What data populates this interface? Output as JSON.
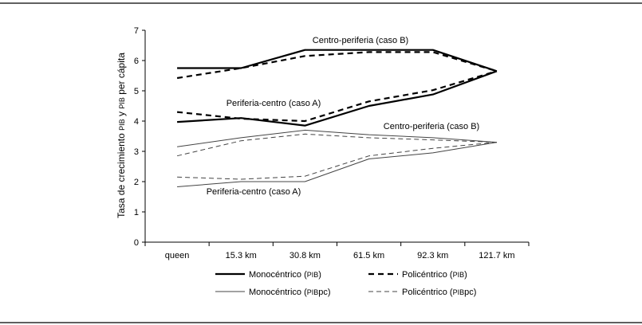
{
  "chart_data": {
    "type": "line",
    "ylabel": {
      "main": "Tasa de crecimiento",
      "pib": "PIB",
      "middle": "y",
      "pib2": "PIB",
      "end": "per cápita"
    },
    "categories": [
      "queen",
      "15.3 km",
      "30.8 km",
      "61.5 km",
      "92.3 km",
      "121.7 km"
    ],
    "ylim": [
      0,
      7
    ],
    "yticks": [
      "0",
      "1",
      "2",
      "3",
      "4",
      "5",
      "6",
      "7"
    ],
    "grid": false,
    "legend_position": "bottom",
    "series": [
      {
        "legend_key": "mono_pib",
        "case": "B",
        "style": "solid",
        "weight": "thick",
        "values": [
          5.75,
          5.75,
          6.35,
          6.35,
          6.35,
          5.65
        ]
      },
      {
        "legend_key": "poly_pib",
        "case": "B",
        "style": "dashed",
        "weight": "thick",
        "values": [
          5.42,
          5.75,
          6.15,
          6.28,
          6.28,
          5.65
        ]
      },
      {
        "legend_key": "mono_pib",
        "case": "A",
        "style": "solid",
        "weight": "thick",
        "values": [
          3.97,
          4.1,
          3.85,
          4.5,
          4.88,
          5.65
        ]
      },
      {
        "legend_key": "poly_pib",
        "case": "A",
        "style": "dashed",
        "weight": "thick",
        "values": [
          4.3,
          4.08,
          4.0,
          4.65,
          5.02,
          5.65
        ]
      },
      {
        "legend_key": "mono_pibpc",
        "case": "B",
        "style": "solid",
        "weight": "thin",
        "values": [
          3.15,
          3.45,
          3.7,
          3.55,
          3.45,
          3.3
        ]
      },
      {
        "legend_key": "poly_pibpc",
        "case": "B",
        "style": "dashed",
        "weight": "thin",
        "values": [
          2.85,
          3.35,
          3.57,
          3.45,
          3.38,
          3.3
        ]
      },
      {
        "legend_key": "mono_pibpc",
        "case": "A",
        "style": "solid",
        "weight": "thin",
        "values": [
          1.83,
          2.0,
          2.0,
          2.75,
          2.95,
          3.3
        ]
      },
      {
        "legend_key": "poly_pibpc",
        "case": "A",
        "style": "dashed",
        "weight": "thin",
        "values": [
          2.15,
          2.08,
          2.18,
          2.85,
          3.1,
          3.3
        ]
      }
    ],
    "annotations": {
      "centro_periferia_pib": "Centro-periferia (caso B)",
      "periferia_centro_pib": "Periferia-centro (caso A)",
      "centro_periferia_pibpc": "Centro-periferia (caso B)",
      "periferia_centro_pibpc": "Periferia-centro (caso A)"
    },
    "legend": {
      "mono_pib": {
        "name": "Monocéntrico",
        "sc": "PIB",
        "suffix": ""
      },
      "poly_pib": {
        "name": "Policéntrico",
        "sc": "PIB",
        "suffix": ""
      },
      "mono_pibpc": {
        "name": "Monocéntrico",
        "sc": "PIB",
        "suffix": "pc"
      },
      "poly_pibpc": {
        "name": "Policéntrico",
        "sc": "PIB",
        "suffix": "pc"
      }
    }
  }
}
